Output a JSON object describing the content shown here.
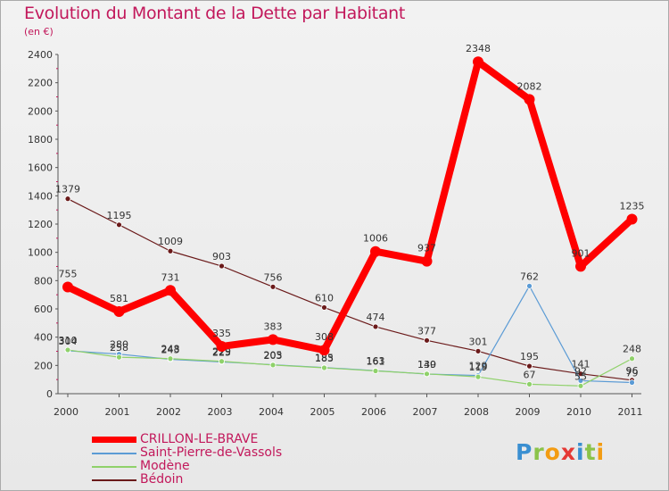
{
  "title": "Evolution du Montant de la Dette par Habitant",
  "unit": "(en €)",
  "logo": "Proxiti",
  "logo_colors": [
    "#3a8fd1",
    "#8bc34a",
    "#f39c12",
    "#e53935",
    "#3a8fd1",
    "#8bc34a",
    "#f39c12"
  ],
  "chart_data": {
    "type": "line",
    "x": [
      "2000",
      "2001",
      "2002",
      "2003",
      "2004",
      "2005",
      "2006",
      "2007",
      "2008",
      "2009",
      "2010",
      "2011"
    ],
    "ylim": [
      0,
      2400
    ],
    "yticks": [
      0,
      200,
      400,
      600,
      800,
      1000,
      1200,
      1400,
      1600,
      1800,
      2000,
      2200,
      2400
    ],
    "grid": false,
    "legend_position": "bottom-left",
    "series": [
      {
        "name": "Bédoin",
        "color": "#6b1a1a",
        "marker": "#6b1a1a",
        "values": [
          1379,
          1195,
          1009,
          903,
          756,
          610,
          474,
          377,
          301,
          195,
          141,
          96
        ]
      },
      {
        "name": "Saint-Pierre-de-Vassols",
        "color": "#5b9bd5",
        "marker": "#5b9bd5",
        "values": [
          304,
          280,
          243,
          225,
          205,
          185,
          163,
          139,
          129,
          762,
          92,
          79
        ]
      },
      {
        "name": "Modène",
        "color": "#8fd16a",
        "marker": "#8fd16a",
        "values": [
          310,
          258,
          248,
          229,
          203,
          183,
          161,
          140,
          119,
          67,
          55,
          248
        ]
      },
      {
        "name": "CRILLON-LE-BRAVE",
        "color": "#ff0000",
        "marker": "#ff0000",
        "values": [
          755,
          581,
          731,
          335,
          383,
          308,
          1006,
          937,
          2348,
          2082,
          901,
          1235
        ]
      }
    ],
    "legend_order": [
      "CRILLON-LE-BRAVE",
      "Saint-Pierre-de-Vassols",
      "Modène",
      "Bédoin"
    ]
  }
}
